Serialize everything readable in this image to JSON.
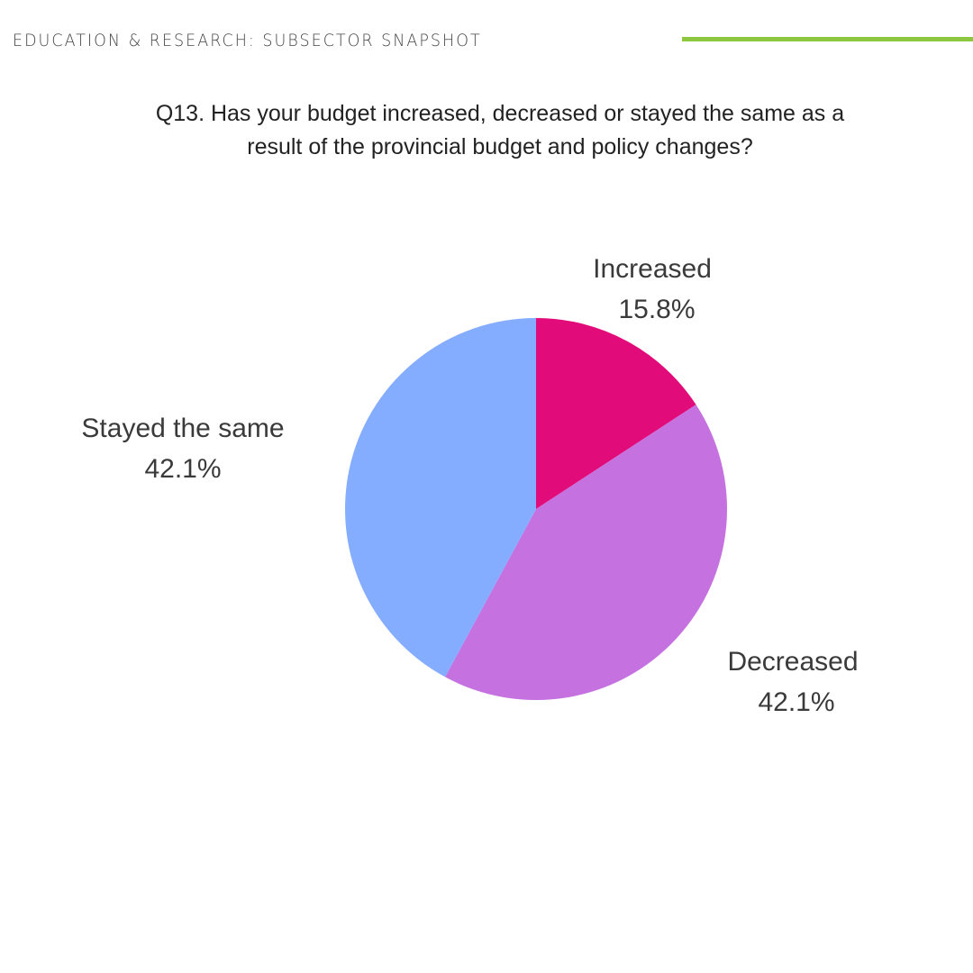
{
  "header": {
    "title": "EDUCATION & RESEARCH: SUBSECTOR SNAPSHOT",
    "accent_color": "#8dc63f"
  },
  "chart_data": {
    "type": "pie",
    "title": "Q13. Has your budget increased, decreased or stayed the same as a result of the provincial budget and policy changes?",
    "title_lines": [
      "Q13. Has your budget increased, decreased or stayed the same as a",
      "result of the provincial budget and policy changes?"
    ],
    "slices": [
      {
        "label": "Increased",
        "value": 15.8,
        "display": "15.8%",
        "color": "#e20b7a"
      },
      {
        "label": "Decreased",
        "value": 42.1,
        "display": "42.1%",
        "color": "#c571e0"
      },
      {
        "label": "Stayed the same",
        "value": 42.1,
        "display": "42.1%",
        "color": "#84adff"
      }
    ]
  }
}
